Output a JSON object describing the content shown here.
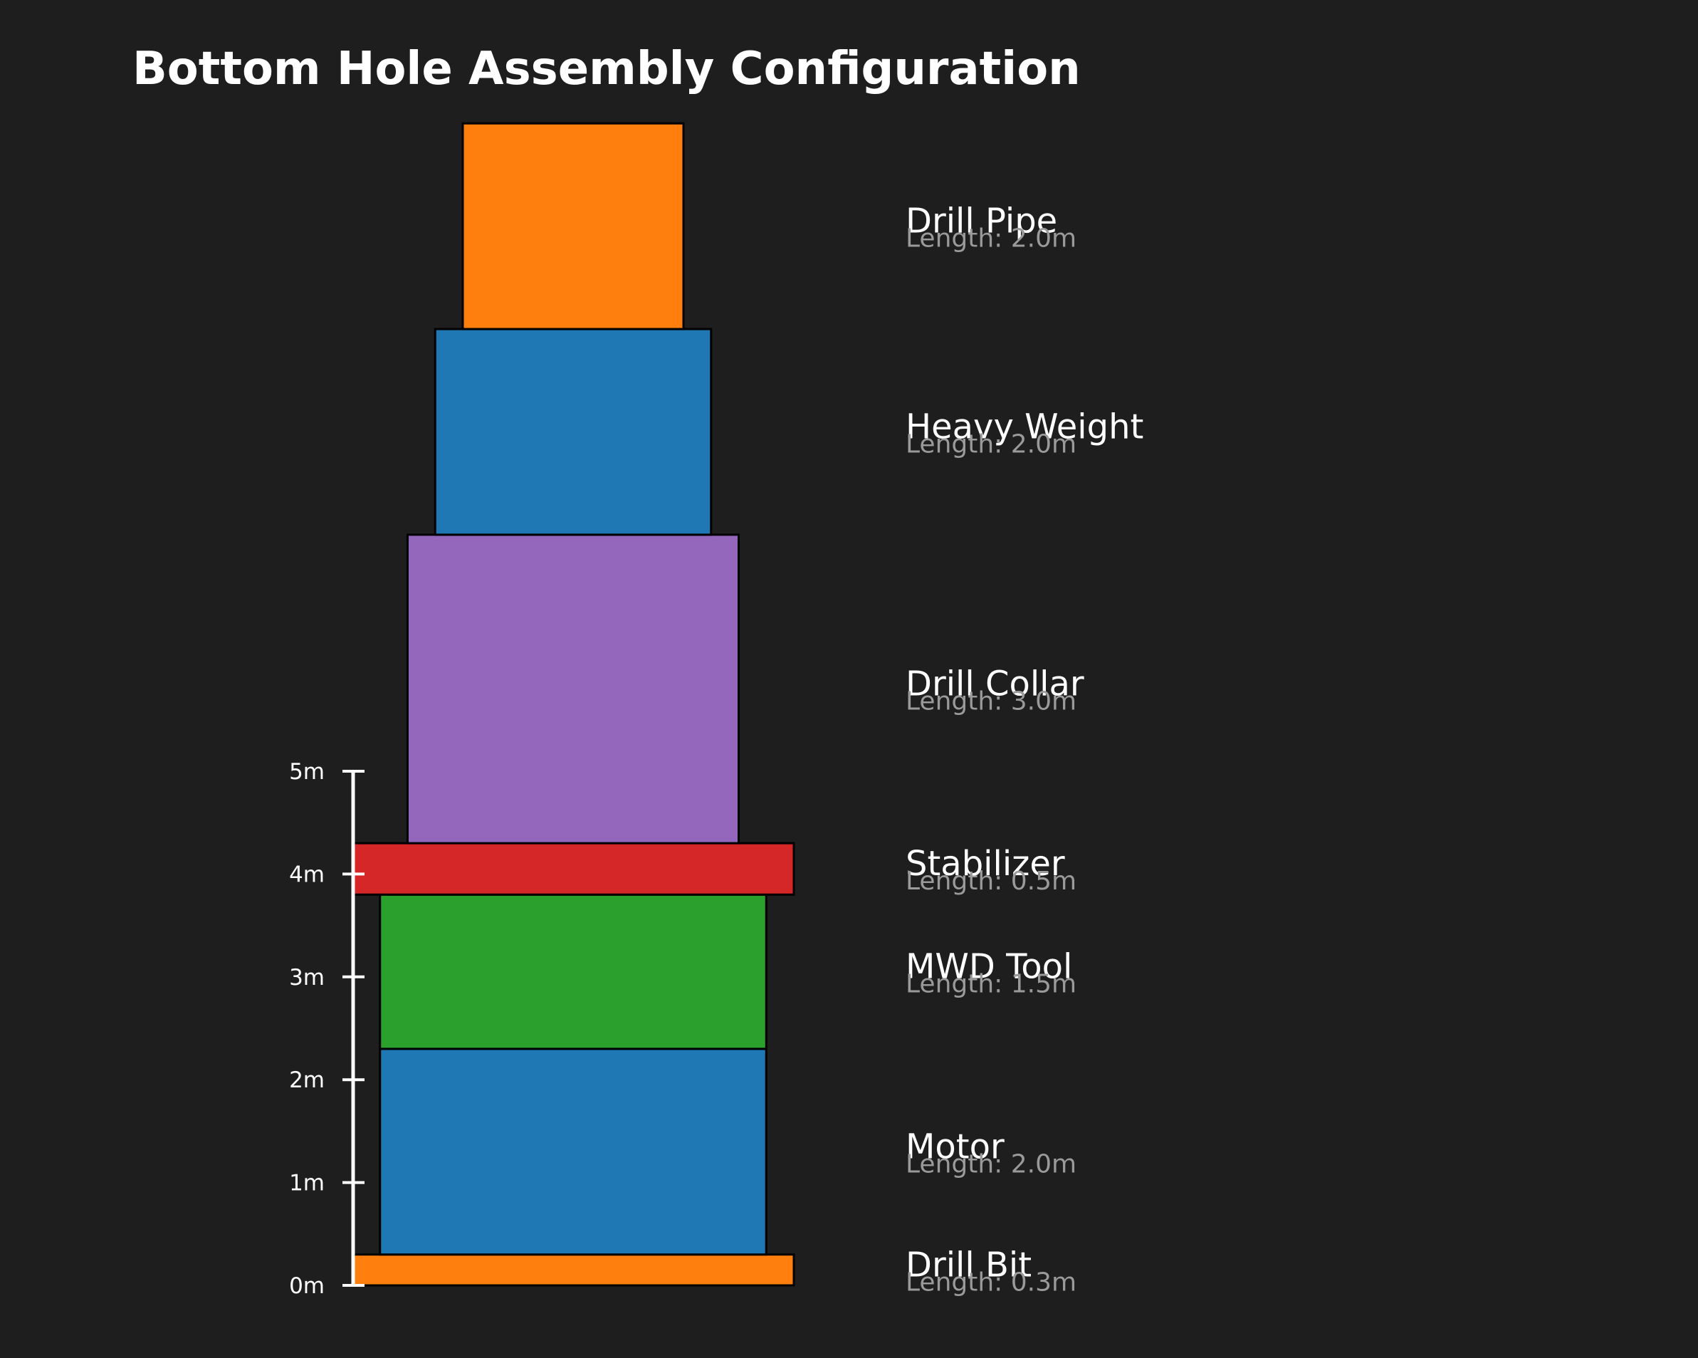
{
  "title": "Bottom Hole Assembly Configuration",
  "chart_data": {
    "type": "bar",
    "title": "Bottom Hole Assembly Configuration",
    "length_prefix": "Length: ",
    "unit": "m",
    "scale": {
      "ticks": [
        0,
        1,
        2,
        3,
        4,
        5
      ],
      "tick_labels": [
        "0m",
        "1m",
        "2m",
        "3m",
        "4m",
        "5m"
      ],
      "range": [
        0,
        5
      ]
    },
    "components": [
      {
        "name": "Drill Bit",
        "length": 0.3,
        "length_label": "0.3m",
        "width": 4.0,
        "color": "#ff7f0e"
      },
      {
        "name": "Motor",
        "length": 2.0,
        "length_label": "2.0m",
        "width": 3.5,
        "color": "#1f77b4"
      },
      {
        "name": "MWD Tool",
        "length": 1.5,
        "length_label": "1.5m",
        "width": 3.5,
        "color": "#2ca02c"
      },
      {
        "name": "Stabilizer",
        "length": 0.5,
        "length_label": "0.5m",
        "width": 4.0,
        "color": "#d62728"
      },
      {
        "name": "Drill Collar",
        "length": 3.0,
        "length_label": "3.0m",
        "width": 3.0,
        "color": "#9467bd"
      },
      {
        "name": "Heavy Weight",
        "length": 2.0,
        "length_label": "2.0m",
        "width": 2.5,
        "color": "#1f77b4"
      },
      {
        "name": "Drill Pipe",
        "length": 2.0,
        "length_label": "2.0m",
        "width": 2.0,
        "color": "#ff7f0e"
      }
    ]
  }
}
